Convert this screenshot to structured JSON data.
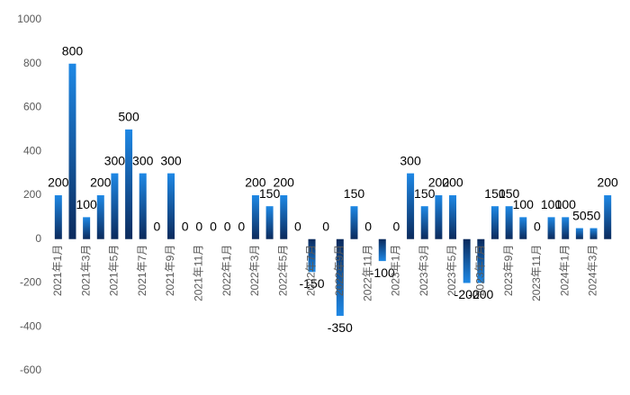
{
  "chart_data": {
    "type": "bar",
    "categories": [
      "2021年1月",
      null,
      "2021年3月",
      null,
      "2021年5月",
      null,
      "2021年7月",
      null,
      "2021年9月",
      null,
      "2021年11月",
      null,
      "2022年1月",
      null,
      "2022年3月",
      null,
      "2022年5月",
      null,
      "2022年7月",
      null,
      "2022年9月",
      null,
      "2022年11月",
      null,
      "2023年1月",
      null,
      "2023年3月",
      null,
      "2023年5月",
      null,
      "2023年7月",
      null,
      "2023年9月",
      null,
      "2023年11月",
      null,
      "2024年1月",
      null,
      "2024年3月",
      null
    ],
    "values": [
      200,
      800,
      100,
      200,
      300,
      500,
      300,
      0,
      300,
      0,
      0,
      0,
      0,
      0,
      200,
      150,
      200,
      0,
      -150,
      0,
      -350,
      150,
      0,
      -100,
      0,
      300,
      150,
      200,
      200,
      -200,
      -200,
      150,
      150,
      100,
      0,
      100,
      100,
      50,
      50,
      200
    ],
    "color": "#1e88e5",
    "ylim": [
      -600,
      1000
    ],
    "yticks": [
      -600,
      -400,
      -200,
      0,
      200,
      400,
      600,
      800,
      1000
    ],
    "grid": false
  }
}
